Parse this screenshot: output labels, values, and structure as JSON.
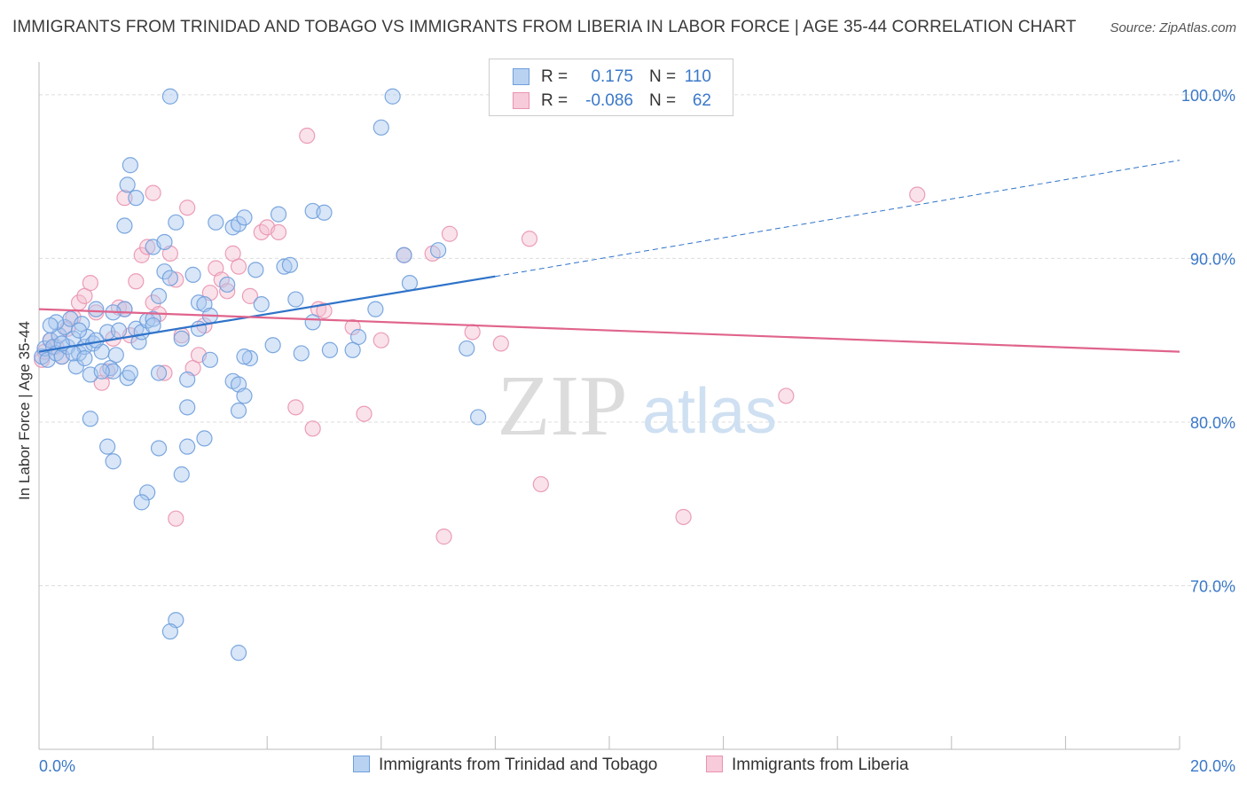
{
  "title": "IMMIGRANTS FROM TRINIDAD AND TOBAGO VS IMMIGRANTS FROM LIBERIA IN LABOR FORCE | AGE 35-44 CORRELATION CHART",
  "source": "Source: ZipAtlas.com",
  "watermark": {
    "zip": "ZIP",
    "atlas": "atlas"
  },
  "legend": {
    "series": [
      {
        "r_label": "R =",
        "r_value": "0.175",
        "n_label": "N =",
        "n_value": "110"
      },
      {
        "r_label": "R =",
        "r_value": "-0.086",
        "n_label": "N =",
        "n_value": "62"
      }
    ]
  },
  "colors": {
    "blue_fill": "#a9c7ef",
    "blue_stroke": "#6f9fdc",
    "blue_line": "#2f73c9",
    "pink_fill": "#f5bfd0",
    "pink_stroke": "#e993b0",
    "pink_line": "#e0648c",
    "axis_label": "#3a78c8",
    "grid": "#dddddd"
  },
  "chart_data": {
    "type": "scatter",
    "title": "IMMIGRANTS FROM TRINIDAD AND TOBAGO VS IMMIGRANTS FROM LIBERIA IN LABOR FORCE | AGE 35-44 CORRELATION CHART",
    "xlabel": "",
    "ylabel": "In Labor Force | Age 35-44",
    "xlim": [
      0,
      20
    ],
    "ylim": [
      60,
      102
    ],
    "x_tick_labels": [
      "0.0%",
      "20.0%"
    ],
    "y_ticks": [
      70,
      80,
      90,
      100
    ],
    "y_tick_labels": [
      "70.0%",
      "80.0%",
      "90.0%",
      "100.0%"
    ],
    "grid": true,
    "legend_position": "top-center",
    "series": [
      {
        "name": "Immigrants from Trinidad and Tobago",
        "color": "#6f9fdc",
        "regression": {
          "x": [
            0,
            8.0,
            20
          ],
          "y": [
            84.3,
            88.9,
            96.0
          ],
          "solid_until_x": 8.0
        },
        "points": [
          [
            0.05,
            84.0
          ],
          [
            0.1,
            84.5
          ],
          [
            0.15,
            83.8
          ],
          [
            0.2,
            85.0
          ],
          [
            0.25,
            84.6
          ],
          [
            0.3,
            84.2
          ],
          [
            0.35,
            85.3
          ],
          [
            0.4,
            84.0
          ],
          [
            0.45,
            85.8
          ],
          [
            0.5,
            84.6
          ],
          [
            0.55,
            86.3
          ],
          [
            0.6,
            85.1
          ],
          [
            0.65,
            83.4
          ],
          [
            0.7,
            84.2
          ],
          [
            0.75,
            86.0
          ],
          [
            0.8,
            84.6
          ],
          [
            0.85,
            85.2
          ],
          [
            0.9,
            82.9
          ],
          [
            0.95,
            84.8
          ],
          [
            1.0,
            86.9
          ],
          [
            1.1,
            84.3
          ],
          [
            1.2,
            85.5
          ],
          [
            1.25,
            83.3
          ],
          [
            1.3,
            83.1
          ],
          [
            1.35,
            84.1
          ],
          [
            1.4,
            85.6
          ],
          [
            1.5,
            86.9
          ],
          [
            1.55,
            82.7
          ],
          [
            1.6,
            83.0
          ],
          [
            1.7,
            85.7
          ],
          [
            1.75,
            84.9
          ],
          [
            1.8,
            85.5
          ],
          [
            1.9,
            86.2
          ],
          [
            2.0,
            86.3
          ],
          [
            2.1,
            87.7
          ],
          [
            2.2,
            89.2
          ],
          [
            2.3,
            88.8
          ],
          [
            2.5,
            85.1
          ],
          [
            2.7,
            89.0
          ],
          [
            2.8,
            87.3
          ],
          [
            2.9,
            87.2
          ],
          [
            3.0,
            86.5
          ],
          [
            3.3,
            88.4
          ],
          [
            3.4,
            91.9
          ],
          [
            3.5,
            92.1
          ],
          [
            3.6,
            92.5
          ],
          [
            3.8,
            89.3
          ],
          [
            3.9,
            87.2
          ],
          [
            4.3,
            89.5
          ],
          [
            4.4,
            89.6
          ],
          [
            4.5,
            87.5
          ],
          [
            4.6,
            84.2
          ],
          [
            4.8,
            86.1
          ],
          [
            5.1,
            84.4
          ],
          [
            5.6,
            85.2
          ],
          [
            5.5,
            84.4
          ],
          [
            6.5,
            88.5
          ],
          [
            6.4,
            90.2
          ],
          [
            7.0,
            90.5
          ],
          [
            2.0,
            90.7
          ],
          [
            1.5,
            92.0
          ],
          [
            1.6,
            95.7
          ],
          [
            1.7,
            93.7
          ],
          [
            1.55,
            94.5
          ],
          [
            2.4,
            92.2
          ],
          [
            2.2,
            91.0
          ],
          [
            3.1,
            92.2
          ],
          [
            4.2,
            92.7
          ],
          [
            4.8,
            92.9
          ],
          [
            5.0,
            92.8
          ],
          [
            6.0,
            98.0
          ],
          [
            2.3,
            99.9
          ],
          [
            6.2,
            99.9
          ],
          [
            2.1,
            83.0
          ],
          [
            3.0,
            83.8
          ],
          [
            3.4,
            82.5
          ],
          [
            3.5,
            82.3
          ],
          [
            3.6,
            81.6
          ],
          [
            3.5,
            80.7
          ],
          [
            2.6,
            80.9
          ],
          [
            0.9,
            80.2
          ],
          [
            1.2,
            78.5
          ],
          [
            1.3,
            77.6
          ],
          [
            2.1,
            78.4
          ],
          [
            2.6,
            78.5
          ],
          [
            2.9,
            79.0
          ],
          [
            2.5,
            76.8
          ],
          [
            1.9,
            75.7
          ],
          [
            1.8,
            75.1
          ],
          [
            2.4,
            67.9
          ],
          [
            2.3,
            67.2
          ],
          [
            3.5,
            65.9
          ],
          [
            7.5,
            84.5
          ],
          [
            7.7,
            80.3
          ],
          [
            0.7,
            85.6
          ],
          [
            0.3,
            86.1
          ],
          [
            0.2,
            85.9
          ],
          [
            0.6,
            84.2
          ],
          [
            1.0,
            85.0
          ],
          [
            1.1,
            83.1
          ],
          [
            2.6,
            82.6
          ],
          [
            2.8,
            85.7
          ],
          [
            3.7,
            83.9
          ],
          [
            3.6,
            84.0
          ],
          [
            2.0,
            85.9
          ],
          [
            1.3,
            86.7
          ],
          [
            0.8,
            83.9
          ],
          [
            0.4,
            84.8
          ],
          [
            4.1,
            84.7
          ],
          [
            5.9,
            86.9
          ]
        ]
      },
      {
        "name": "Immigrants from Liberia",
        "color": "#e993b0",
        "regression": {
          "x": [
            0,
            20
          ],
          "y": [
            86.9,
            84.3
          ]
        },
        "points": [
          [
            0.05,
            83.8
          ],
          [
            0.1,
            84.3
          ],
          [
            0.2,
            85.0
          ],
          [
            0.3,
            84.6
          ],
          [
            0.4,
            84.0
          ],
          [
            0.5,
            85.7
          ],
          [
            0.6,
            86.4
          ],
          [
            0.7,
            87.3
          ],
          [
            0.8,
            87.7
          ],
          [
            0.9,
            88.5
          ],
          [
            1.0,
            86.7
          ],
          [
            1.1,
            82.4
          ],
          [
            1.2,
            83.1
          ],
          [
            1.3,
            85.1
          ],
          [
            1.4,
            87.0
          ],
          [
            1.5,
            86.9
          ],
          [
            1.6,
            85.3
          ],
          [
            1.7,
            88.6
          ],
          [
            1.8,
            90.2
          ],
          [
            1.9,
            90.7
          ],
          [
            2.0,
            87.3
          ],
          [
            2.1,
            86.6
          ],
          [
            2.2,
            83.0
          ],
          [
            2.3,
            90.3
          ],
          [
            2.4,
            88.7
          ],
          [
            2.5,
            85.3
          ],
          [
            2.6,
            93.1
          ],
          [
            2.7,
            83.3
          ],
          [
            2.8,
            84.1
          ],
          [
            2.9,
            85.9
          ],
          [
            3.0,
            87.9
          ],
          [
            3.1,
            89.4
          ],
          [
            3.2,
            88.7
          ],
          [
            3.3,
            88.0
          ],
          [
            3.4,
            90.3
          ],
          [
            3.5,
            89.5
          ],
          [
            3.7,
            87.7
          ],
          [
            3.9,
            91.6
          ],
          [
            4.0,
            91.9
          ],
          [
            4.2,
            91.6
          ],
          [
            4.8,
            79.6
          ],
          [
            4.9,
            86.9
          ],
          [
            5.0,
            86.8
          ],
          [
            5.5,
            85.8
          ],
          [
            6.0,
            85.0
          ],
          [
            4.5,
            80.9
          ],
          [
            5.7,
            80.5
          ],
          [
            6.4,
            90.2
          ],
          [
            6.9,
            90.3
          ],
          [
            7.2,
            91.5
          ],
          [
            7.6,
            85.5
          ],
          [
            8.1,
            84.8
          ],
          [
            8.6,
            91.2
          ],
          [
            8.8,
            76.2
          ],
          [
            7.1,
            73.0
          ],
          [
            11.3,
            74.2
          ],
          [
            13.1,
            81.6
          ],
          [
            15.4,
            93.9
          ],
          [
            2.4,
            74.1
          ],
          [
            4.7,
            97.5
          ],
          [
            1.5,
            93.7
          ],
          [
            2.0,
            94.0
          ]
        ]
      }
    ]
  },
  "bottom_legend": [
    {
      "label": "Immigrants from Trinidad and Tobago"
    },
    {
      "label": "Immigrants from Liberia"
    }
  ]
}
